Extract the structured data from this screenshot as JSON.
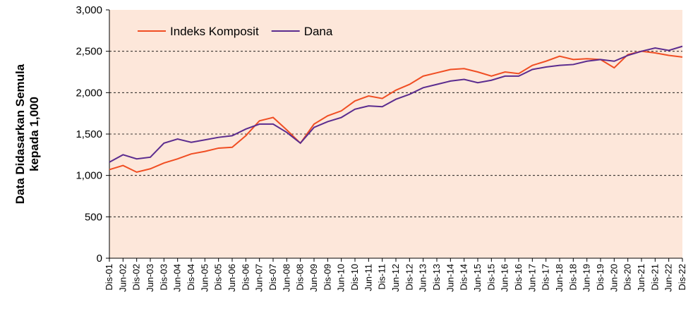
{
  "chart_data": {
    "type": "line",
    "ylabel": [
      "Data Didasarkan Semula",
      "kepada 1,000"
    ],
    "categories": [
      "Dis-01",
      "Jun-02",
      "Dis-02",
      "Jun-03",
      "Dis-03",
      "Jun-04",
      "Dis-04",
      "Jun-05",
      "Dis-05",
      "Jun-06",
      "Dis-06",
      "Jun-07",
      "Dis-07",
      "Jun-08",
      "Dis-08",
      "Jun-09",
      "Dis-09",
      "Jun-10",
      "Dis-10",
      "Jun-11",
      "Dis-11",
      "Jun-12",
      "Dis-12",
      "Jun-13",
      "Dis-13",
      "Jun-14",
      "Dis-14",
      "Jun-15",
      "Dis-15",
      "Jun-16",
      "Dis-16",
      "Jun-17",
      "Dis-17",
      "Jun-18",
      "Dis-18",
      "Jun-19",
      "Dis-19",
      "Jun-20",
      "Dis-20",
      "Jun-21",
      "Dis-21",
      "Jun-22",
      "Dis-22"
    ],
    "series": [
      {
        "name": "Indeks Komposit",
        "color": "#f04e23",
        "values": [
          1070,
          1120,
          1040,
          1080,
          1150,
          1200,
          1260,
          1290,
          1330,
          1340,
          1480,
          1660,
          1700,
          1550,
          1390,
          1620,
          1720,
          1780,
          1900,
          1960,
          1930,
          2030,
          2100,
          2200,
          2240,
          2280,
          2290,
          2250,
          2200,
          2250,
          2230,
          2330,
          2380,
          2440,
          2400,
          2410,
          2400,
          2300,
          2460,
          2500,
          2480,
          2450,
          2430
        ]
      },
      {
        "name": "Dana",
        "color": "#5b2c8f",
        "values": [
          1160,
          1250,
          1200,
          1220,
          1390,
          1440,
          1400,
          1430,
          1460,
          1480,
          1560,
          1620,
          1620,
          1520,
          1390,
          1580,
          1650,
          1700,
          1800,
          1840,
          1830,
          1920,
          1980,
          2060,
          2100,
          2140,
          2160,
          2120,
          2150,
          2200,
          2200,
          2280,
          2310,
          2330,
          2340,
          2380,
          2400,
          2380,
          2450,
          2500,
          2540,
          2510,
          2560
        ]
      }
    ],
    "ylim": [
      0,
      3000
    ],
    "yticks": [
      0,
      500,
      {
        "value": 1000,
        "label": "1,000"
      },
      {
        "value": 1500,
        "label": "1,500"
      },
      {
        "value": 2000,
        "label": "2,000"
      },
      {
        "value": 2500,
        "label": "2,500"
      },
      {
        "value": 3000,
        "label": "3,000"
      }
    ],
    "grid": true,
    "legend": "upper left",
    "background": "#fde7da"
  }
}
